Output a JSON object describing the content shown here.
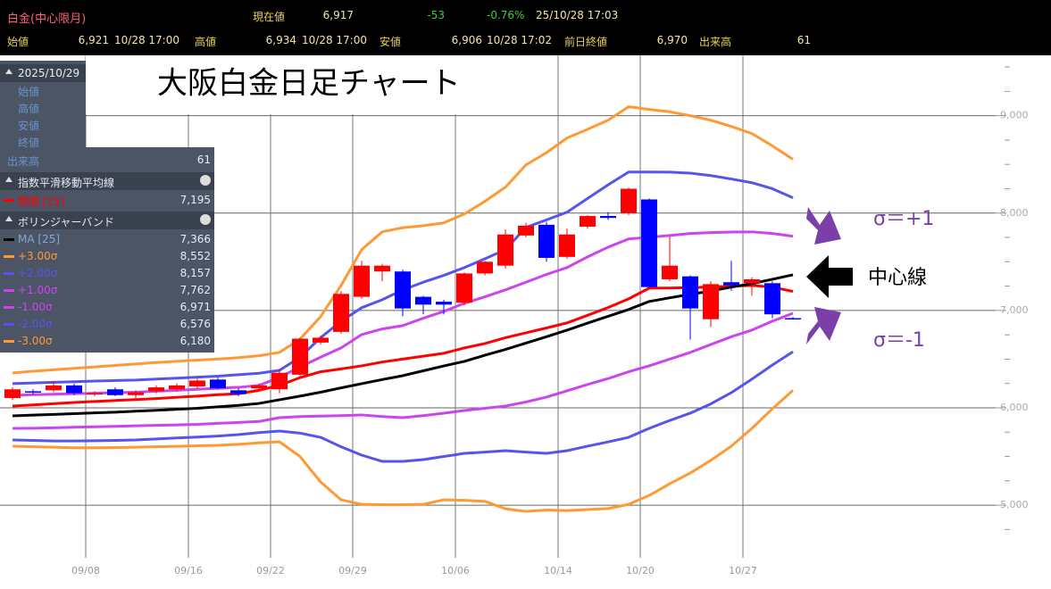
{
  "header": {
    "instrument": "白金(中心限月)",
    "current_label": "現在値",
    "current": "6,917",
    "change": "-53",
    "change_pct": "-0.76%",
    "time": "25/10/28 17:03",
    "stats": [
      {
        "label": "始値",
        "value": "6,921",
        "time": "10/28 17:00"
      },
      {
        "label": "高値",
        "value": "6,934",
        "time": "10/28 17:00"
      },
      {
        "label": "安値",
        "value": "6,906",
        "time": "10/28 17:02"
      },
      {
        "label": "前日終値",
        "value": "6,970"
      },
      {
        "label": "出来高",
        "value": "61"
      }
    ]
  },
  "panel": {
    "date": "2025/10/29",
    "fields": [
      "始値",
      "高値",
      "安値",
      "終値",
      "出来高"
    ],
    "volume": "61",
    "ema_title": "指数平滑移動平均線",
    "bb_title": "ボリンジャーバンド"
  },
  "chart_data": {
    "type": "candlestick",
    "title": "大阪白金日足チャート",
    "categories": [
      null,
      null,
      null,
      null,
      "09/08",
      null,
      null,
      null,
      null,
      "09/16",
      null,
      null,
      null,
      "09/22",
      null,
      null,
      null,
      "09/29",
      null,
      null,
      null,
      null,
      "10/06",
      null,
      null,
      null,
      null,
      "10/14",
      null,
      null,
      null,
      "10/20",
      null,
      null,
      null,
      null,
      "10/27",
      null,
      null
    ],
    "open": [
      6100,
      6170,
      6180,
      6230,
      6140,
      6190,
      6130,
      6170,
      6190,
      6220,
      6290,
      6180,
      6200,
      6190,
      6340,
      6670,
      6780,
      7140,
      7400,
      7400,
      7140,
      7090,
      7080,
      7380,
      7460,
      7770,
      7880,
      7550,
      7860,
      7970,
      8000,
      8140,
      7320,
      7350,
      6910,
      7290,
      7280,
      7280,
      6921
    ],
    "high": [
      6210,
      6190,
      6270,
      6250,
      6170,
      6210,
      6180,
      6230,
      6250,
      6300,
      6310,
      6200,
      6250,
      6400,
      6720,
      6740,
      7200,
      7510,
      7480,
      7420,
      7150,
      7110,
      7390,
      7510,
      7830,
      7900,
      7910,
      7840,
      7980,
      8010,
      8260,
      8150,
      7760,
      7360,
      7300,
      7510,
      7340,
      7300,
      6934
    ],
    "low": [
      6080,
      6140,
      6160,
      6130,
      6120,
      6120,
      6100,
      6150,
      6170,
      6200,
      6190,
      6120,
      6180,
      6150,
      6320,
      6650,
      6760,
      7120,
      7300,
      6940,
      6960,
      6960,
      7050,
      7360,
      7430,
      7750,
      7500,
      7530,
      7840,
      7930,
      7980,
      7230,
      7300,
      6700,
      6830,
      7200,
      7150,
      6920,
      6906
    ],
    "close": [
      6190,
      6160,
      6230,
      6150,
      6150,
      6130,
      6160,
      6210,
      6230,
      6280,
      6200,
      6140,
      6230,
      6360,
      6710,
      6720,
      7170,
      7460,
      7460,
      7020,
      7060,
      7060,
      7380,
      7500,
      7780,
      7870,
      7540,
      7780,
      7970,
      7950,
      8250,
      7240,
      7460,
      7020,
      7270,
      7260,
      7320,
      6960,
      6917
    ],
    "up_color": "#ff0000",
    "down_color": "#0000ff",
    "series": [
      {
        "name": "期間 [25]",
        "color": "#ff0000",
        "value_label": "7,195",
        "values": [
          6018,
          6030,
          6042,
          6055,
          6065,
          6075,
          6085,
          6095,
          6108,
          6120,
          6135,
          6145,
          6180,
          6230,
          6310,
          6370,
          6400,
          6431,
          6470,
          6500,
          6530,
          6560,
          6615,
          6660,
          6720,
          6770,
          6820,
          6872,
          6950,
          7030,
          7119,
          7229,
          7230,
          7235,
          7240,
          7250,
          7257,
          7240,
          7195
        ]
      },
      {
        "name": "MA [25]",
        "color": "#000000",
        "value_label": "7,366",
        "values": [
          5917,
          5925,
          5932,
          5940,
          5948,
          5955,
          5965,
          5975,
          5985,
          5995,
          6010,
          6025,
          6045,
          6083,
          6120,
          6160,
          6205,
          6248,
          6290,
          6330,
          6380,
          6430,
          6477,
          6540,
          6600,
          6665,
          6730,
          6798,
          6870,
          6940,
          7010,
          7092,
          7130,
          7165,
          7200,
          7240,
          7275,
          7320,
          7366
        ]
      },
      {
        "name": "+3.00σ",
        "color": "#ff9933",
        "value_label": "8,552",
        "values": [
          6358,
          6375,
          6390,
          6405,
          6420,
          6435,
          6450,
          6465,
          6477,
          6490,
          6500,
          6515,
          6535,
          6569,
          6706,
          6936,
          7257,
          7624,
          7807,
          7850,
          7870,
          7899,
          7991,
          8120,
          8266,
          8495,
          8620,
          8771,
          8860,
          8954,
          9092,
          9064,
          9040,
          9000,
          8954,
          8890,
          8817,
          8690,
          8552
        ]
      },
      {
        "name": "+2.00σ",
        "color": "#5555ee",
        "value_label": "8,157",
        "values": [
          6248,
          6255,
          6262,
          6268,
          6275,
          6280,
          6285,
          6295,
          6305,
          6315,
          6325,
          6340,
          6355,
          6385,
          6520,
          6720,
          6890,
          7028,
          7110,
          7211,
          7290,
          7360,
          7440,
          7530,
          7624,
          7853,
          7930,
          8009,
          8150,
          8290,
          8422,
          8422,
          8420,
          8410,
          8385,
          8350,
          8312,
          8250,
          8157
        ]
      },
      {
        "name": "+1.00σ",
        "color": "#cc44ee",
        "value_label": "7,762",
        "values": [
          6128,
          6135,
          6140,
          6145,
          6150,
          6155,
          6160,
          6170,
          6180,
          6190,
          6200,
          6210,
          6230,
          6312,
          6420,
          6520,
          6615,
          6752,
          6810,
          6844,
          6920,
          6990,
          7073,
          7140,
          7211,
          7290,
          7370,
          7440,
          7550,
          7650,
          7734,
          7752,
          7770,
          7790,
          7800,
          7805,
          7807,
          7790,
          7762
        ]
      },
      {
        "name": "-1.00σ",
        "color": "#cc44ee",
        "value_label": "6,971",
        "values": [
          5789,
          5790,
          5795,
          5800,
          5805,
          5810,
          5815,
          5820,
          5825,
          5830,
          5840,
          5850,
          5860,
          5899,
          5910,
          5915,
          5920,
          5927,
          5910,
          5899,
          5920,
          5945,
          5972,
          5995,
          6018,
          6060,
          6110,
          6174,
          6240,
          6300,
          6370,
          6431,
          6500,
          6569,
          6650,
          6730,
          6798,
          6890,
          6971
        ]
      },
      {
        "name": "-2.00σ",
        "color": "#5555ee",
        "value_label": "6,576",
        "values": [
          5670,
          5665,
          5660,
          5660,
          5662,
          5665,
          5670,
          5680,
          5690,
          5700,
          5710,
          5725,
          5745,
          5761,
          5740,
          5697,
          5600,
          5514,
          5450,
          5450,
          5468,
          5500,
          5532,
          5545,
          5560,
          5545,
          5532,
          5560,
          5606,
          5650,
          5697,
          5789,
          5870,
          5945,
          6040,
          6156,
          6294,
          6440,
          6576
        ]
      },
      {
        "name": "-3.00σ",
        "color": "#ff9933",
        "value_label": "6,180",
        "values": [
          5606,
          5600,
          5595,
          5590,
          5590,
          5592,
          5595,
          5600,
          5605,
          5610,
          5615,
          5625,
          5640,
          5651,
          5500,
          5239,
          5055,
          5009,
          5005,
          5005,
          5009,
          5055,
          5050,
          5040,
          4963,
          4936,
          4950,
          4945,
          4955,
          4965,
          5009,
          5100,
          5220,
          5330,
          5460,
          5606,
          5789,
          5990,
          6180
        ]
      }
    ],
    "ylim": [
      4460,
      9620
    ],
    "yticks": [
      {
        "value": 5000,
        "label": "5,000"
      },
      {
        "value": 6000,
        "label": "6,000"
      },
      {
        "value": 7000,
        "label": "7,000"
      },
      {
        "value": 8000,
        "label": "8,000"
      },
      {
        "value": 9000,
        "label": "9,000"
      }
    ],
    "minor_yticks": [
      4750,
      5250,
      5500,
      5750,
      6250,
      6500,
      6750,
      7250,
      7500,
      7750,
      8250,
      8500,
      8750,
      9250,
      9500
    ],
    "grid": true,
    "annotations": [
      {
        "text": "σ＝+1"
      },
      {
        "text": "中心線"
      },
      {
        "text": "σ＝-1"
      }
    ]
  }
}
